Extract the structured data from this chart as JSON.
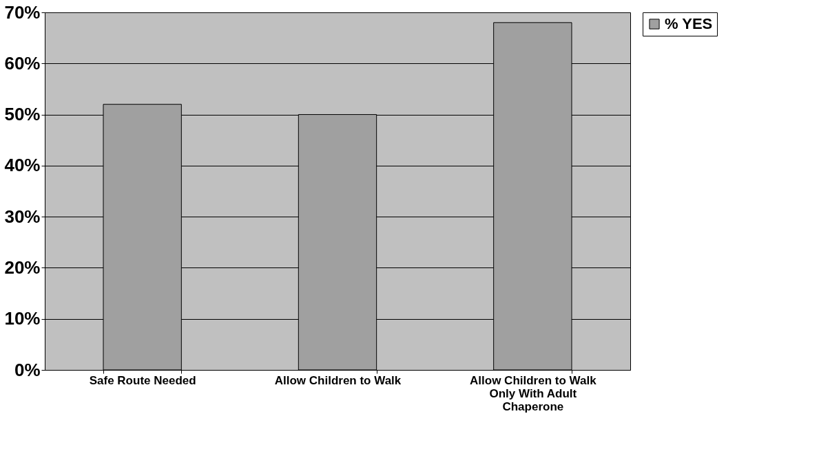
{
  "chart_data": {
    "type": "bar",
    "categories": [
      "Safe Route Needed",
      "Allow Children to Walk",
      "Allow Children to Walk Only With Adult Chaperone"
    ],
    "series": [
      {
        "name": "% YES",
        "color": "#a0a0a0",
        "values": [
          52,
          50,
          68
        ]
      }
    ],
    "ylim": [
      0,
      70
    ],
    "yticks": [
      {
        "value": 0,
        "label": "0%"
      },
      {
        "value": 10,
        "label": "10%"
      },
      {
        "value": 20,
        "label": "20%"
      },
      {
        "value": 30,
        "label": "30%"
      },
      {
        "value": 40,
        "label": "40%"
      },
      {
        "value": 50,
        "label": "50%"
      },
      {
        "value": 60,
        "label": "60%"
      },
      {
        "value": 70,
        "label": "70%"
      }
    ],
    "grid": "y",
    "legend": "right"
  }
}
